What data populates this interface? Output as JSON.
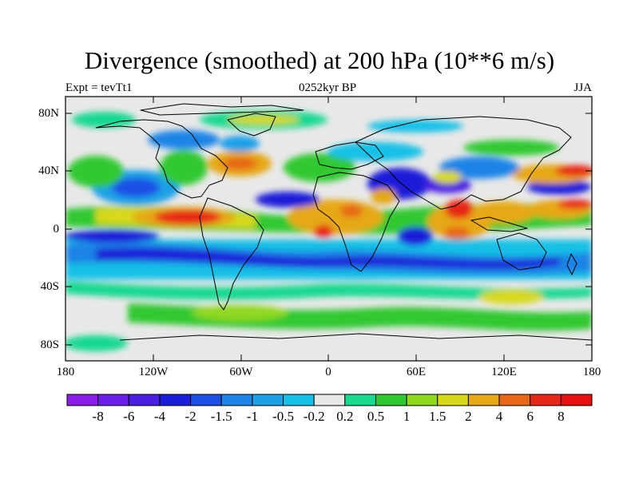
{
  "title": "Divergence (smoothed) at 200 hPa (10**6 m/s)",
  "subtitle_left": "Expt = tevTt1",
  "subtitle_center": "0252kyr BP",
  "subtitle_right": "JJA",
  "lat_labels": [
    "80N",
    "40N",
    "0",
    "40S",
    "80S"
  ],
  "lon_labels": [
    "180",
    "120W",
    "60W",
    "0",
    "60E",
    "120E",
    "180"
  ],
  "colorbar": {
    "labels": [
      "-8",
      "-6",
      "-4",
      "-2",
      "-1.5",
      "-1",
      "-0.5",
      "-0.2",
      "0.2",
      "0.5",
      "1",
      "1.5",
      "2",
      "4",
      "6",
      "8"
    ],
    "colors": [
      "#8a1ee6",
      "#6a1ee6",
      "#4a1ee0",
      "#1a1ed8",
      "#1a50e6",
      "#1e84e6",
      "#1ea0e6",
      "#19c0e6",
      "#e8e8e8",
      "#19d890",
      "#30c830",
      "#90d820",
      "#d8d81a",
      "#e6a818",
      "#e66818",
      "#e62818",
      "#e61010"
    ]
  }
}
